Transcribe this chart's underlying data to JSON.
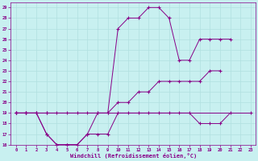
{
  "bg_color": "#c8f0f0",
  "grid_color": "#b0e0e0",
  "line_color": "#880088",
  "marker_color": "#880088",
  "xlabel": "Windchill (Refroidissement éolien,°C)",
  "xlabel_color": "#880088",
  "tick_color": "#880088",
  "xlim": [
    -0.5,
    23.5
  ],
  "ylim": [
    16,
    29.5
  ],
  "yticks": [
    16,
    17,
    18,
    19,
    20,
    21,
    22,
    23,
    24,
    25,
    26,
    27,
    28,
    29
  ],
  "xticks": [
    0,
    1,
    2,
    3,
    4,
    5,
    6,
    7,
    8,
    9,
    10,
    11,
    12,
    13,
    14,
    15,
    16,
    17,
    18,
    19,
    20,
    21,
    22,
    23
  ],
  "series": [
    [
      19,
      19,
      null,
      19,
      null,
      null,
      null,
      null,
      null,
      null,
      null,
      null,
      null,
      null,
      null,
      null,
      null,
      null,
      null,
      null,
      null,
      null,
      null,
      19
    ],
    [
      19,
      19,
      19,
      17,
      16,
      16,
      16,
      17,
      19,
      19,
      27,
      28,
      28,
      29,
      29,
      28,
      24,
      24,
      26,
      26,
      26,
      26,
      null,
      null
    ],
    [
      19,
      19,
      19,
      19,
      19,
      19,
      19,
      19,
      19,
      19,
      20,
      20,
      21,
      21,
      22,
      22,
      22,
      22,
      22,
      23,
      23,
      null,
      null,
      null
    ],
    [
      19,
      19,
      19,
      17,
      16,
      16,
      16,
      17,
      17,
      17,
      19,
      19,
      19,
      19,
      19,
      19,
      19,
      19,
      18,
      18,
      18,
      19,
      null,
      null
    ]
  ]
}
